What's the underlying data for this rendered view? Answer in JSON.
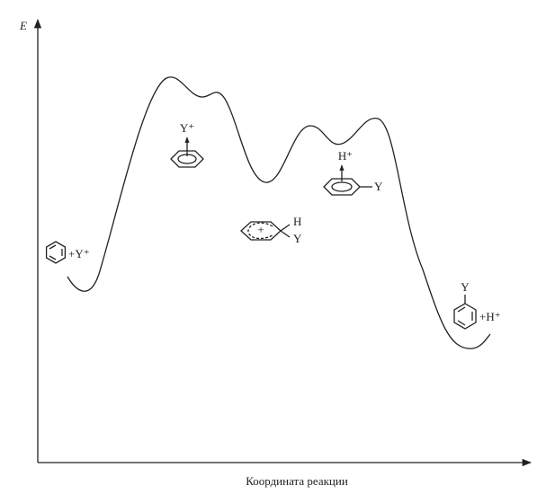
{
  "axes": {
    "y_label": "E",
    "x_label": "Координата реакции"
  },
  "reactants": {
    "label": "+Y⁺"
  },
  "pi_complex_1": {
    "label": "Y⁺"
  },
  "sigma_complex": {
    "h_label": "H",
    "y_label": "Y"
  },
  "pi_complex_2": {
    "h_label": "H⁺",
    "y_label": "Y"
  },
  "products": {
    "y_label": "Y",
    "label": "+H⁺"
  }
}
